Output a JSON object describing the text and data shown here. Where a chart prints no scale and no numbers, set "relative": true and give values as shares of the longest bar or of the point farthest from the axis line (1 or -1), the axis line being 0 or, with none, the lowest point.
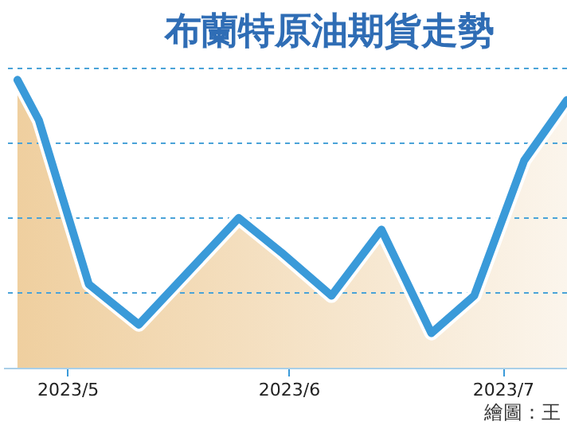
{
  "chart_data": {
    "type": "area",
    "title": "布蘭特原油期貨走勢",
    "relative": true,
    "x": [
      "2023-04-24",
      "2023-04-27",
      "2023-05-04",
      "2023-05-11",
      "2023-05-25",
      "2023-05-31",
      "2023-06-07",
      "2023-06-14",
      "2023-06-21",
      "2023-06-27",
      "2023-07-04",
      "2023-07-10"
    ],
    "series": [
      {
        "color": "#3a9ad9",
        "values": [
          1,
          0.86,
          0.29,
          0.15,
          0.52,
          0.4,
          0.25,
          0.48,
          0.12,
          0.25,
          0.72,
          0.93
        ]
      }
    ],
    "xlim": [
      "2023-04-22",
      "2023-07-10"
    ],
    "xticks": [
      {
        "value": "2023-05-01",
        "label": "2023/5"
      },
      {
        "value": "2023-06-01",
        "label": "2023/6"
      },
      {
        "value": "2023-07-01",
        "label": "2023/7"
      }
    ],
    "ref_lines": [
      {
        "axis": "y",
        "value": 0.26,
        "color": "#4aa3d8",
        "line_style": "dashed"
      },
      {
        "axis": "y",
        "value": 0.52,
        "color": "#4aa3d8",
        "line_style": "dashed"
      },
      {
        "axis": "y",
        "value": 0.78,
        "color": "#4aa3d8",
        "line_style": "dashed"
      },
      {
        "axis": "y",
        "value": 1.04,
        "color": "#4aa3d8",
        "line_style": "dashed"
      }
    ],
    "marker": "none",
    "line_style": "solid",
    "annotations": [
      "繪圖：王"
    ]
  }
}
